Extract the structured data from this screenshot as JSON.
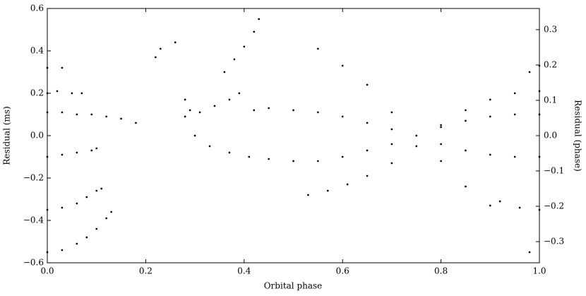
{
  "chart_data": {
    "type": "scatter",
    "x_label": "Orbital phase",
    "y_label": "Residual (ms)",
    "y2_label": "Residual (phase)",
    "xlim": [
      0,
      1
    ],
    "xticks": [
      {
        "value": 0,
        "label": "0.0"
      },
      0.2,
      0.4,
      0.6,
      0.8,
      {
        "value": 1,
        "label": "1.0"
      }
    ],
    "ylim": [
      -0.6,
      0.6
    ],
    "yticks": [
      {
        "value": -0.6,
        "label": "−0.6"
      },
      {
        "value": -0.4,
        "label": "−0.4"
      },
      {
        "value": -0.2,
        "label": "−0.2"
      },
      {
        "value": 0,
        "label": "0.0"
      },
      0.2,
      0.4,
      0.6
    ],
    "y2lim": [
      -0.36,
      0.36
    ],
    "y2ticks": [
      {
        "value": -0.3,
        "label": "−0.3"
      },
      {
        "value": -0.2,
        "label": "−0.2"
      },
      {
        "value": -0.1,
        "label": "−0.1"
      },
      {
        "value": 0,
        "label": "0.0"
      },
      0.1,
      0.2,
      0.3
    ],
    "color": "#000000",
    "x": [
      0,
      0.03,
      0.06,
      0.09,
      0.12,
      0.15,
      0.18,
      0,
      0.03,
      0.06,
      0.09,
      0.1,
      0,
      0.03,
      0.06,
      0.08,
      0.1,
      0.11,
      0,
      0.03,
      0.06,
      0.08,
      0.1,
      0.12,
      0.13,
      0,
      0.03,
      0,
      0.02,
      0.05,
      0.07,
      0.22,
      0.23,
      0.26,
      0.28,
      0.29,
      0.31,
      0.34,
      0.37,
      0.39,
      0.28,
      0.3,
      0.33,
      0.37,
      0.41,
      0.45,
      0.5,
      0.55,
      0.6,
      0.65,
      0.7,
      0.75,
      0.8,
      0.85,
      0.9,
      0.95,
      1.0,
      0.42,
      0.45,
      0.5,
      0.55,
      0.6,
      0.65,
      0.7,
      0.8,
      0.85,
      0.9,
      0.95,
      1.0,
      0.36,
      0.38,
      0.4,
      0.42,
      0.43,
      0.55,
      0.6,
      0.65,
      0.7,
      0.8,
      0.85,
      0.9,
      0.53,
      0.57,
      0.61,
      0.65,
      0.7,
      0.75,
      0.8,
      0.85,
      0.9,
      0.95,
      1.0,
      0.92,
      0.96,
      1.0,
      0.98,
      1.0,
      0.98
    ],
    "values": [
      0.11,
      0.11,
      0.1,
      0.1,
      0.09,
      0.08,
      0.06,
      -0.1,
      -0.09,
      -0.08,
      -0.07,
      -0.06,
      -0.35,
      -0.34,
      -0.32,
      -0.29,
      -0.26,
      -0.25,
      -0.55,
      -0.54,
      -0.51,
      -0.48,
      -0.44,
      -0.39,
      -0.36,
      0.32,
      0.32,
      0.2,
      0.21,
      0.2,
      0.2,
      0.37,
      0.41,
      0.44,
      0.17,
      0.12,
      0.11,
      0.14,
      0.17,
      0.2,
      0.09,
      0,
      -0.05,
      -0.08,
      -0.1,
      -0.11,
      -0.12,
      -0.12,
      -0.1,
      -0.07,
      -0.04,
      0,
      0.04,
      0.07,
      0.09,
      0.1,
      0.1,
      0.12,
      0.13,
      0.12,
      0.11,
      0.09,
      0.06,
      0.03,
      -0.04,
      -0.07,
      -0.09,
      -0.1,
      -0.1,
      0.3,
      0.36,
      0.42,
      0.49,
      0.55,
      0.41,
      0.33,
      0.24,
      0.11,
      -0.12,
      -0.24,
      -0.33,
      -0.28,
      -0.26,
      -0.23,
      -0.19,
      -0.13,
      -0.05,
      0.05,
      0.12,
      0.17,
      0.2,
      0.21,
      -0.31,
      -0.34,
      -0.35,
      0.3,
      0.33,
      -0.55
    ]
  }
}
